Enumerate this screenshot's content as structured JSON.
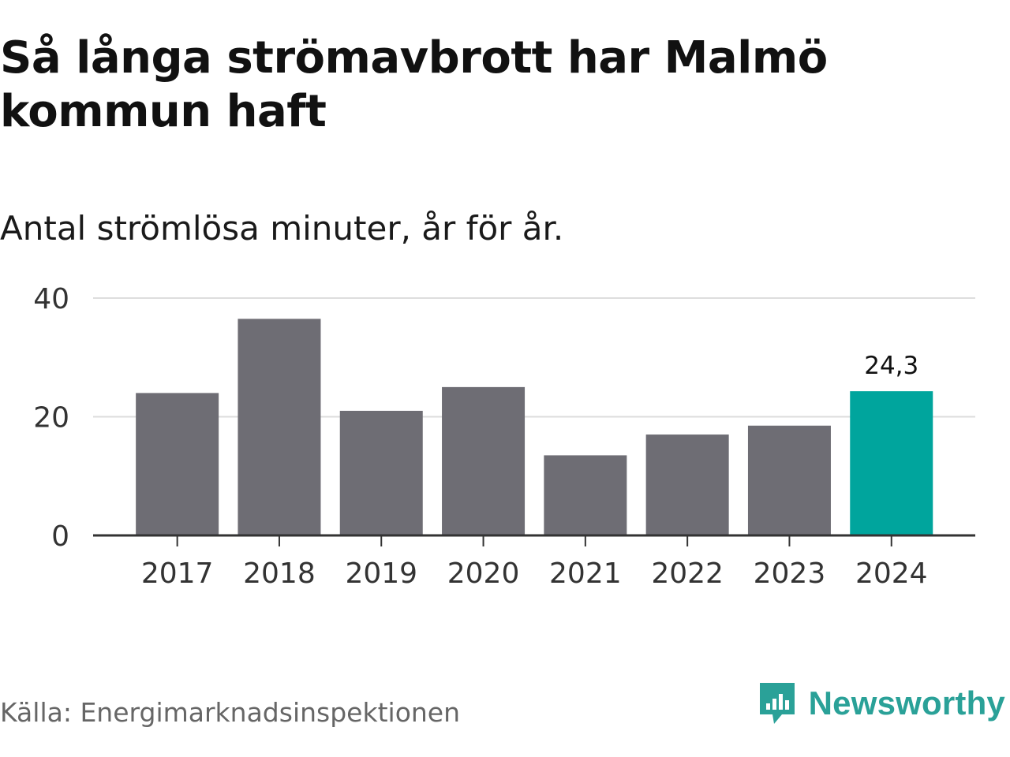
{
  "title": "Så långa strömavbrott har Malmö kommun haft",
  "subtitle": "Antal strömlösa minuter, år för år.",
  "source": "Källa: Energimarknadsinspektionen",
  "brand": {
    "name": "Newsworthy",
    "icon": "newsworthy-logo-icon",
    "color": "#2aa198"
  },
  "chart_data": {
    "type": "bar",
    "title": "Så långa strömavbrott har Malmö kommun haft",
    "subtitle": "Antal strömlösa minuter, år för år.",
    "categories": [
      "2017",
      "2018",
      "2019",
      "2020",
      "2021",
      "2022",
      "2023",
      "2024"
    ],
    "values": [
      24.0,
      36.5,
      21.0,
      25.0,
      13.5,
      17.0,
      18.5,
      24.3
    ],
    "highlight_index": 7,
    "highlight_label": "24,3",
    "yticks": [
      0,
      20,
      40
    ],
    "ylim": [
      0,
      40
    ],
    "xlabel": "",
    "ylabel": "",
    "grid": true,
    "colors": {
      "bar": "#6e6d74",
      "highlight": "#00a59d",
      "grid": "#dddddd",
      "axis": "#333333"
    }
  }
}
